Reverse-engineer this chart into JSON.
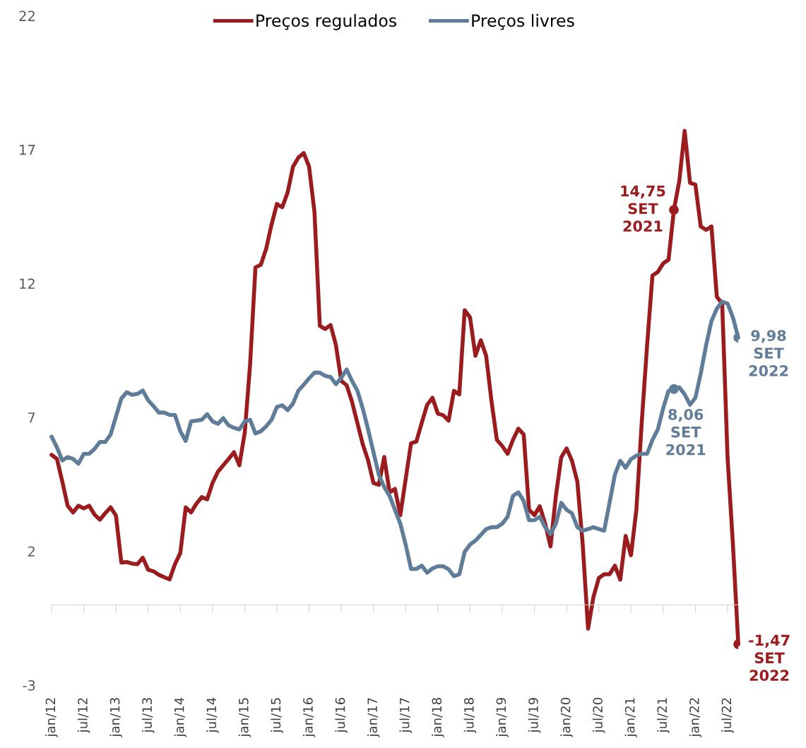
{
  "chart_data": {
    "type": "line",
    "x": [
      "2012-01",
      "2012-02",
      "2012-03",
      "2012-04",
      "2012-05",
      "2012-06",
      "2012-07",
      "2012-08",
      "2012-09",
      "2012-10",
      "2012-11",
      "2012-12",
      "2013-01",
      "2013-02",
      "2013-03",
      "2013-04",
      "2013-05",
      "2013-06",
      "2013-07",
      "2013-08",
      "2013-09",
      "2013-10",
      "2013-11",
      "2013-12",
      "2014-01",
      "2014-02",
      "2014-03",
      "2014-04",
      "2014-05",
      "2014-06",
      "2014-07",
      "2014-08",
      "2014-09",
      "2014-10",
      "2014-11",
      "2014-12",
      "2015-01",
      "2015-02",
      "2015-03",
      "2015-04",
      "2015-05",
      "2015-06",
      "2015-07",
      "2015-08",
      "2015-09",
      "2015-10",
      "2015-11",
      "2015-12",
      "2016-01",
      "2016-02",
      "2016-03",
      "2016-04",
      "2016-05",
      "2016-06",
      "2016-07",
      "2016-08",
      "2016-09",
      "2016-10",
      "2016-11",
      "2016-12",
      "2017-01",
      "2017-02",
      "2017-03",
      "2017-04",
      "2017-05",
      "2017-06",
      "2017-07",
      "2017-08",
      "2017-09",
      "2017-10",
      "2017-11",
      "2017-12",
      "2018-01",
      "2018-02",
      "2018-03",
      "2018-04",
      "2018-05",
      "2018-06",
      "2018-07",
      "2018-08",
      "2018-09",
      "2018-10",
      "2018-11",
      "2018-12",
      "2019-01",
      "2019-02",
      "2019-03",
      "2019-04",
      "2019-05",
      "2019-06",
      "2019-07",
      "2019-08",
      "2019-09",
      "2019-10",
      "2019-11",
      "2019-12",
      "2020-01",
      "2020-02",
      "2020-03",
      "2020-04",
      "2020-05",
      "2020-06",
      "2020-07",
      "2020-08",
      "2020-09",
      "2020-10",
      "2020-11",
      "2020-12",
      "2021-01",
      "2021-02",
      "2021-03",
      "2021-04",
      "2021-05",
      "2021-06",
      "2021-07",
      "2021-08",
      "2021-09",
      "2021-10",
      "2021-11",
      "2021-12",
      "2022-01",
      "2022-02",
      "2022-03",
      "2022-04",
      "2022-05",
      "2022-06",
      "2022-07",
      "2022-08",
      "2022-09"
    ],
    "xlim": [
      "2012-01",
      "2022-09"
    ],
    "xticks": [
      {
        "value": "2012-01",
        "label": "jan/12"
      },
      {
        "value": "2012-07",
        "label": "jul/12"
      },
      {
        "value": "2013-01",
        "label": "jan/13"
      },
      {
        "value": "2013-07",
        "label": "jul/13"
      },
      {
        "value": "2014-01",
        "label": "jan/14"
      },
      {
        "value": "2014-07",
        "label": "jul/14"
      },
      {
        "value": "2015-01",
        "label": "jan/15"
      },
      {
        "value": "2015-07",
        "label": "jul/15"
      },
      {
        "value": "2016-01",
        "label": "jan/16"
      },
      {
        "value": "2016-07",
        "label": "jul/16"
      },
      {
        "value": "2017-01",
        "label": "jan/17"
      },
      {
        "value": "2017-07",
        "label": "jul/17"
      },
      {
        "value": "2018-01",
        "label": "jan/18"
      },
      {
        "value": "2018-07",
        "label": "jul/18"
      },
      {
        "value": "2019-01",
        "label": "jan/19"
      },
      {
        "value": "2019-07",
        "label": "jul/19"
      },
      {
        "value": "2020-01",
        "label": "jan/20"
      },
      {
        "value": "2020-07",
        "label": "jul/20"
      },
      {
        "value": "2021-01",
        "label": "jan/21"
      },
      {
        "value": "2021-07",
        "label": "jul/21"
      },
      {
        "value": "2022-01",
        "label": "jan/22"
      },
      {
        "value": "2022-07",
        "label": "jul/22"
      }
    ],
    "series": [
      {
        "name": "Preços regulados",
        "color": "#9b1c1f",
        "values": [
          5.6,
          5.45,
          4.6,
          3.7,
          3.45,
          3.7,
          3.6,
          3.7,
          3.37,
          3.18,
          3.42,
          3.64,
          3.33,
          1.58,
          1.6,
          1.54,
          1.52,
          1.76,
          1.31,
          1.25,
          1.12,
          1.03,
          0.95,
          1.52,
          1.94,
          3.64,
          3.45,
          3.78,
          4.02,
          3.94,
          4.55,
          4.97,
          5.21,
          5.45,
          5.7,
          5.21,
          6.42,
          8.97,
          12.6,
          12.7,
          13.3,
          14.2,
          14.97,
          14.85,
          15.4,
          16.36,
          16.7,
          16.87,
          16.36,
          14.67,
          10.42,
          10.3,
          10.45,
          9.7,
          8.36,
          8.2,
          7.58,
          6.79,
          6.0,
          5.39,
          4.55,
          4.48,
          5.52,
          4.2,
          4.33,
          3.35,
          4.7,
          6.03,
          6.1,
          6.8,
          7.47,
          7.73,
          7.14,
          7.08,
          6.88,
          7.99,
          7.86,
          11.0,
          10.73,
          9.3,
          9.88,
          9.3,
          7.6,
          6.16,
          5.93,
          5.64,
          6.16,
          6.58,
          6.36,
          3.55,
          3.35,
          3.68,
          3.03,
          2.18,
          4.07,
          5.51,
          5.84,
          5.38,
          4.6,
          2.25,
          -0.89,
          0.29,
          1.0,
          1.14,
          1.14,
          1.46,
          0.94,
          2.57,
          1.85,
          3.55,
          6.81,
          9.69,
          12.3,
          12.43,
          12.75,
          12.89,
          14.75,
          15.82,
          17.7,
          15.76,
          15.69,
          14.13,
          14.0,
          14.13,
          11.5,
          11.25,
          5.5,
          2.25,
          -1.47
        ]
      },
      {
        "name": "Preços livres",
        "color": "#5f7d98",
        "values": [
          6.28,
          5.88,
          5.39,
          5.52,
          5.45,
          5.27,
          5.64,
          5.64,
          5.82,
          6.08,
          6.08,
          6.36,
          7.03,
          7.7,
          7.94,
          7.84,
          7.88,
          8.0,
          7.64,
          7.42,
          7.18,
          7.18,
          7.09,
          7.09,
          6.48,
          6.12,
          6.85,
          6.88,
          6.91,
          7.12,
          6.85,
          6.76,
          6.97,
          6.7,
          6.61,
          6.55,
          6.85,
          6.91,
          6.4,
          6.48,
          6.67,
          6.91,
          7.39,
          7.45,
          7.27,
          7.52,
          8.0,
          8.22,
          8.46,
          8.67,
          8.67,
          8.55,
          8.51,
          8.24,
          8.48,
          8.79,
          8.36,
          8.0,
          7.33,
          6.55,
          5.7,
          4.85,
          4.4,
          4.07,
          3.55,
          3.03,
          2.25,
          1.34,
          1.34,
          1.46,
          1.2,
          1.36,
          1.44,
          1.44,
          1.33,
          1.07,
          1.14,
          1.98,
          2.25,
          2.4,
          2.61,
          2.83,
          2.9,
          2.9,
          3.03,
          3.29,
          4.07,
          4.2,
          3.88,
          3.16,
          3.16,
          3.29,
          2.9,
          2.64,
          3.03,
          3.81,
          3.55,
          3.42,
          2.9,
          2.77,
          2.83,
          2.9,
          2.83,
          2.77,
          3.81,
          4.86,
          5.38,
          5.12,
          5.44,
          5.57,
          5.64,
          5.64,
          6.16,
          6.55,
          7.34,
          7.99,
          8.06,
          8.12,
          7.86,
          7.47,
          7.73,
          8.64,
          9.69,
          10.6,
          11.06,
          11.32,
          11.25,
          10.73,
          9.98
        ]
      }
    ],
    "ylim": [
      -3,
      22
    ],
    "yticks": [
      -3,
      2,
      7,
      12,
      17,
      22
    ],
    "legend": "top",
    "grid": false,
    "annotations": [
      {
        "text": "14,75\nSET\n2021",
        "x": "2021-09",
        "y": 14.75
      },
      {
        "text": "8,06\nSET\n2021",
        "x": "2021-09",
        "y": 8.06
      },
      {
        "text": "9,98\nSET\n2022",
        "x": "2022-09",
        "y": 9.98
      },
      {
        "text": "-1,47\nSET\n2022",
        "x": "2022-09",
        "y": -1.47
      }
    ]
  }
}
